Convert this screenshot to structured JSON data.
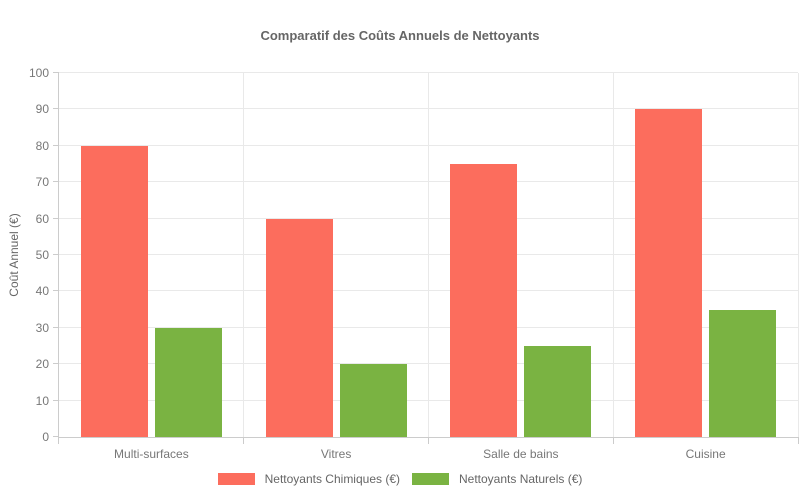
{
  "chart_data": {
    "type": "bar",
    "title": "Comparatif des Coûts Annuels de Nettoyants",
    "xlabel": "",
    "ylabel": "Coût Annuel (€)",
    "categories": [
      "Multi-surfaces",
      "Vitres",
      "Salle de bains",
      "Cuisine"
    ],
    "series": [
      {
        "name": "Nettoyants Chimiques (€)",
        "color": "#fc6d5d",
        "values": [
          80,
          60,
          75,
          90
        ]
      },
      {
        "name": "Nettoyants Naturels (€)",
        "color": "#7ab342",
        "values": [
          30,
          20,
          25,
          35
        ]
      }
    ],
    "ylim": [
      0,
      100
    ],
    "yticks": [
      0,
      10,
      20,
      30,
      40,
      50,
      60,
      70,
      80,
      90,
      100
    ],
    "grid": true,
    "legend_position": "bottom"
  },
  "style_colors": {
    "grid": "#e9e9e9",
    "axis": "#cccccc",
    "tick_text": "#777777",
    "title_text": "#666666",
    "background": "#ffffff"
  }
}
